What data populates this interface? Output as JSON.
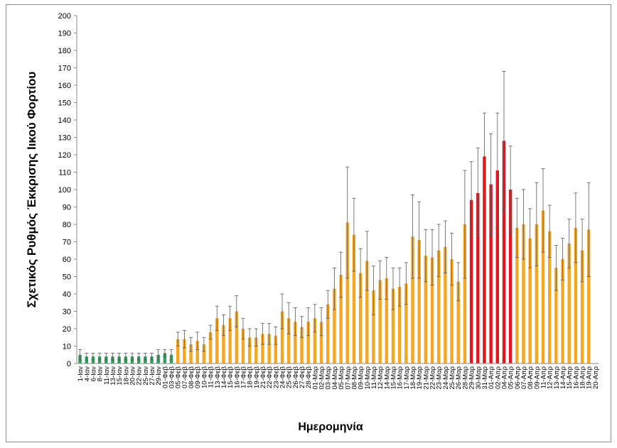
{
  "chart_data": {
    "type": "bar",
    "xlabel": "Ημερομηνία",
    "ylabel": "Σχετικός Ρυθμός Έκκρισης Ιικού Φορτίου",
    "ylim": [
      0,
      200
    ],
    "ytick_step": 10,
    "grid": false,
    "legend": "none",
    "colors": {
      "green": "#2e9e5b",
      "orange": "#f5a623",
      "red": "#e3161c",
      "error_bar": "#595959",
      "axis": "#8c8c8c"
    },
    "categories": [
      "1-Ιαν",
      "4-Ιαν",
      "6-Ιαν",
      "8-Ιαν",
      "11-Ιαν",
      "13-Ιαν",
      "15-Ιαν",
      "18-Ιαν",
      "20-Ιαν",
      "22-Ιαν",
      "25-Ιαν",
      "27-Ιαν",
      "29-Ιαν",
      "01-Φεβ",
      "03-Φεβ",
      "05-Φεβ",
      "07-Φεβ",
      "08-Φεβ",
      "09-Φεβ",
      "10-Φεβ",
      "11-Φεβ",
      "13-Φεβ",
      "14-Φεβ",
      "15-Φεβ",
      "16-Φεβ",
      "17-Φεβ",
      "18-Φεβ",
      "19-Φεβ",
      "21-Φεβ",
      "22-Φεβ",
      "23-Φεβ",
      "24-Φεβ",
      "25-Φεβ",
      "26-Φεβ",
      "27-Φεβ",
      "28-Φεβ",
      "01-Μαρ",
      "02-Μαρ",
      "03-Μαρ",
      "04-Μαρ",
      "05-Μαρ",
      "07-Μαρ",
      "08-Μαρ",
      "09-Μαρ",
      "10-Μαρ",
      "11-Μαρ",
      "12-Μαρ",
      "14-Μαρ",
      "15-Μαρ",
      "16-Μαρ",
      "17-Μαρ",
      "18-Μαρ",
      "19-Μαρ",
      "21-Μαρ",
      "22-Μαρ",
      "23-Μαρ",
      "24-Μαρ",
      "25-Μαρ",
      "26-Μαρ",
      "28-Μαρ",
      "29-Μαρ",
      "30-Μαρ",
      "31-Μαρ",
      "01-Απρ",
      "02-Απρ",
      "04-Απρ",
      "05-Απρ",
      "06-Απρ",
      "07-Απρ",
      "08-Απρ",
      "09-Απρ",
      "11-Απρ",
      "12-Απρ",
      "13-Απρ",
      "14-Απρ",
      "15-Απρ",
      "16-Απρ",
      "18-Απρ",
      "19-Απρ",
      "20-Απρ"
    ],
    "values": [
      5,
      4,
      4,
      4,
      4,
      4,
      4,
      4,
      4,
      4,
      4,
      4,
      5,
      6,
      5,
      14,
      14,
      11,
      13,
      11,
      18,
      26,
      22,
      26,
      30,
      20,
      15,
      15,
      17,
      17,
      16,
      30,
      26,
      24,
      21,
      24,
      26,
      24,
      34,
      43,
      51,
      81,
      74,
      52,
      59,
      42,
      48,
      49,
      43,
      44,
      46,
      73,
      71,
      62,
      61,
      65,
      67,
      60,
      47,
      80,
      94,
      98,
      119,
      103,
      111,
      128,
      100,
      78,
      80,
      72,
      80,
      88,
      76,
      55,
      60,
      69,
      78,
      65,
      77,
      0
    ],
    "errors": [
      3,
      2,
      2,
      2,
      2,
      2,
      2,
      2,
      2,
      2,
      2,
      2,
      3,
      2,
      3,
      4,
      5,
      4,
      5,
      4,
      4,
      7,
      6,
      7,
      9,
      6,
      5,
      5,
      6,
      6,
      5,
      10,
      9,
      8,
      6,
      8,
      8,
      8,
      8,
      12,
      13,
      32,
      21,
      14,
      17,
      14,
      11,
      12,
      12,
      11,
      12,
      24,
      22,
      15,
      16,
      15,
      15,
      15,
      11,
      31,
      22,
      26,
      25,
      29,
      33,
      40,
      25,
      17,
      20,
      17,
      24,
      24,
      15,
      13,
      12,
      14,
      20,
      18,
      27,
      0
    ],
    "bar_colors": [
      "green",
      "green",
      "green",
      "green",
      "green",
      "green",
      "green",
      "green",
      "green",
      "green",
      "green",
      "green",
      "green",
      "green",
      "green",
      "orange",
      "orange",
      "orange",
      "orange",
      "orange",
      "orange",
      "orange",
      "orange",
      "orange",
      "orange",
      "orange",
      "orange",
      "orange",
      "orange",
      "orange",
      "orange",
      "orange",
      "orange",
      "orange",
      "orange",
      "orange",
      "orange",
      "orange",
      "orange",
      "orange",
      "orange",
      "orange",
      "orange",
      "orange",
      "orange",
      "orange",
      "orange",
      "orange",
      "orange",
      "orange",
      "orange",
      "orange",
      "orange",
      "orange",
      "orange",
      "orange",
      "orange",
      "orange",
      "orange",
      "orange",
      "red",
      "red",
      "red",
      "red",
      "red",
      "red",
      "red",
      "orange",
      "orange",
      "orange",
      "orange",
      "orange",
      "orange",
      "orange",
      "orange",
      "orange",
      "orange",
      "orange",
      "orange",
      "orange"
    ]
  }
}
